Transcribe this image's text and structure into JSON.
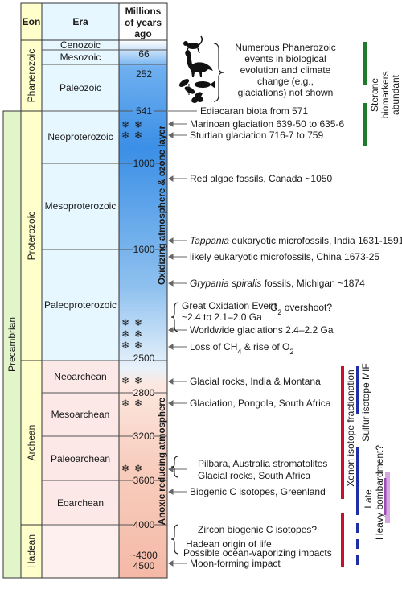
{
  "headers": {
    "eon": "Eon",
    "era": "Era",
    "time": [
      "Millions",
      "of years",
      "ago"
    ]
  },
  "supereon": "Precambrian",
  "eons": [
    {
      "id": "phanerozoic",
      "label": "Phanerozoic",
      "start": 541,
      "end": 0
    },
    {
      "id": "proterozoic",
      "label": "Proterozoic",
      "start": 2500,
      "end": 541
    },
    {
      "id": "archean",
      "label": "Archean",
      "start": 4000,
      "end": 2500
    },
    {
      "id": "hadean",
      "label": "Hadean",
      "start": 4567,
      "end": 4000
    }
  ],
  "eras": [
    {
      "id": "cenozoic",
      "label": "Cenozoic"
    },
    {
      "id": "mesozoic",
      "label": "Mesozoic"
    },
    {
      "id": "paleozoic",
      "label": "Paleozoic"
    },
    {
      "id": "neoproterozoic",
      "label": "Neoproterozoic"
    },
    {
      "id": "mesoproterozoic",
      "label": "Mesoproterozoic"
    },
    {
      "id": "paleoproterozoic",
      "label": "Paleoproterozoic"
    },
    {
      "id": "neoarchean",
      "label": "Neoarchean"
    },
    {
      "id": "mesoarchean",
      "label": "Mesoarchean"
    },
    {
      "id": "paleoarchean",
      "label": "Paleoarchean"
    },
    {
      "id": "eoarchean",
      "label": "Eoarchean"
    }
  ],
  "time_labels": [
    "66",
    "252",
    "541",
    "1000",
    "1600",
    "2500",
    "2800",
    "3200",
    "3600",
    "4000",
    "~4300",
    "4500"
  ],
  "atmosphere": {
    "oxidizing": "Oxidizing atmosphere & ozone layer",
    "anoxic": "Anoxic reducing atmosphere"
  },
  "phanerozoic_note": [
    "Numerous Phanerozoic",
    "events in biological",
    "evolution and climate",
    "change (e.g.,",
    "glaciations) not shown"
  ],
  "events": [
    {
      "id": "ediacaran",
      "text": "Ediacaran biota from 571"
    },
    {
      "id": "marinoan",
      "text": "Marinoan glaciation 639-50 to 635-6"
    },
    {
      "id": "sturtian",
      "text": "Sturtian glaciation 716-7 to 759"
    },
    {
      "id": "red-algae",
      "text": "Red algae fossils, Canada ~1050"
    },
    {
      "id": "tappania",
      "italic": "Tappania",
      "text": " eukaryotic microfossils, India 1631-1591"
    },
    {
      "id": "china-euk",
      "text": "likely eukaryotic microfossils, China 1673-25"
    },
    {
      "id": "grypania",
      "italic": "Grypania spiralis",
      "text": " fossils, Michigan ~1874"
    },
    {
      "id": "goe1",
      "text": "Great Oxidation Event"
    },
    {
      "id": "goe2",
      "text": "~2.4 to 2.1–2.0 Ga"
    },
    {
      "id": "overshoot",
      "pre": "O",
      "sub": "2",
      "text": " overshoot?"
    },
    {
      "id": "worldwide",
      "text": "Worldwide glaciations 2.4–2.2 Ga"
    },
    {
      "id": "ch4",
      "pre": "Loss of CH",
      "sub": "4",
      "text": " & rise of O",
      "sub2": "2"
    },
    {
      "id": "glacial-india",
      "text": "Glacial rocks, India & Montana"
    },
    {
      "id": "pongola",
      "text": "Glaciation, Pongola, South Africa"
    },
    {
      "id": "pilbara",
      "text": "Pilbara, Australia stromatolites"
    },
    {
      "id": "glacial-sa",
      "text": "Glacial rocks, South Africa"
    },
    {
      "id": "biogenic-c",
      "text": "Biogenic C isotopes, Greenland"
    },
    {
      "id": "zircon",
      "text": "Zircon biogenic C isotopes?"
    },
    {
      "id": "hadean-life",
      "text": "Hadean origin of life"
    },
    {
      "id": "ocean-vapor",
      "text": "Possible ocean-vaporizing impacts"
    },
    {
      "id": "moon",
      "text": "Moon-forming impact"
    }
  ],
  "bars": {
    "sterane": [
      "Sterane",
      "biomarkers",
      "abundant"
    ],
    "xenon": "Xenon isotope fractionation",
    "sulfur": "Sulfur isotope MIF",
    "late": "Late",
    "heavy": "Heavy bombardment?"
  },
  "colors": {
    "eon_fill": "#ffffcc",
    "blue_dark": "#3b8fe6",
    "blue_light": "#cfe4f7",
    "pink": "#f7c2b3",
    "green_bar": "#1f7a2a",
    "red_bar": "#c8102e",
    "blue_bar": "#1f2fa8",
    "purple_bar": "#b46ec8",
    "snowflake": "#4a7aa8"
  }
}
